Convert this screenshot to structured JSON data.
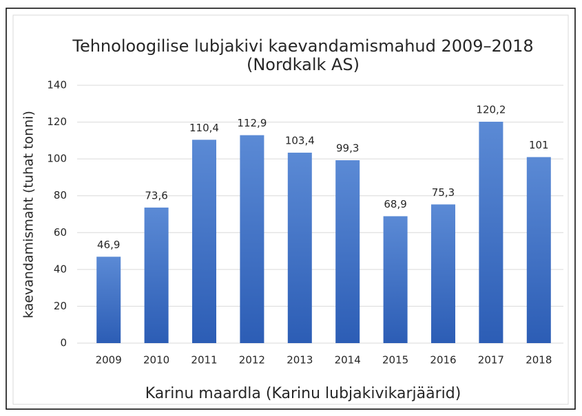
{
  "chart_data": {
    "type": "bar",
    "title": "Tehnoloogilise lubjakivi kaevandamismahud 2009–2018",
    "subtitle": "(Nordkalk AS)",
    "x_label": "Karinu maardla (Karinu lubjakivikarjäärid)",
    "y_label": "kaevandamismaht (tuhat tonni)",
    "categories": [
      "2009",
      "2010",
      "2011",
      "2012",
      "2013",
      "2014",
      "2015",
      "2016",
      "2017",
      "2018"
    ],
    "values": [
      46.9,
      73.6,
      110.4,
      112.9,
      103.4,
      99.3,
      68.9,
      75.3,
      120.2,
      101
    ],
    "value_labels": [
      "46,9",
      "73,6",
      "110,4",
      "112,9",
      "103,4",
      "99,3",
      "68,9",
      "75,3",
      "120,2",
      "101"
    ],
    "colors": [
      "#5b8ad5",
      "#2c5db5"
    ],
    "ylim": [
      0,
      140
    ],
    "yticks": [
      0,
      20,
      40,
      60,
      80,
      100,
      120,
      140
    ],
    "grid": true
  }
}
